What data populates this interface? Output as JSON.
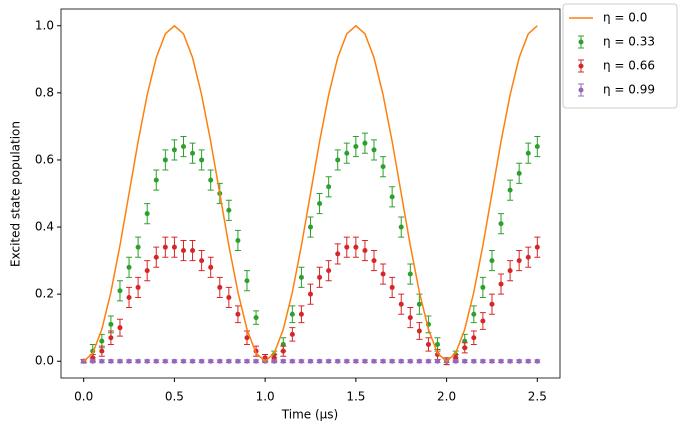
{
  "chart_data": {
    "type": "errorbar",
    "x_label": "Time (μs)",
    "y_label": "Excited state population",
    "x": [
      0,
      0.05,
      0.1,
      0.15,
      0.2,
      0.25,
      0.3,
      0.35,
      0.4,
      0.45,
      0.5,
      0.55,
      0.6,
      0.65,
      0.7,
      0.75,
      0.8,
      0.85,
      0.9,
      0.95,
      1.0,
      1.05,
      1.1,
      1.15,
      1.2,
      1.25,
      1.3,
      1.35,
      1.4,
      1.45,
      1.5,
      1.55,
      1.6,
      1.65,
      1.7,
      1.75,
      1.8,
      1.85,
      1.9,
      1.95,
      2.0,
      2.05,
      2.1,
      2.15,
      2.2,
      2.25,
      2.3,
      2.35,
      2.4,
      2.45,
      2.5
    ],
    "series": [
      {
        "name": "η = 0.0",
        "style": "line",
        "color": "#ff7f0e",
        "values": [
          0,
          0.024,
          0.095,
          0.206,
          0.345,
          0.5,
          0.655,
          0.794,
          0.905,
          0.976,
          1,
          0.976,
          0.905,
          0.794,
          0.655,
          0.5,
          0.345,
          0.206,
          0.095,
          0.024,
          0,
          0.024,
          0.095,
          0.206,
          0.345,
          0.5,
          0.655,
          0.794,
          0.905,
          0.976,
          1,
          0.976,
          0.905,
          0.794,
          0.655,
          0.5,
          0.345,
          0.206,
          0.095,
          0.024,
          0,
          0.024,
          0.095,
          0.206,
          0.345,
          0.5,
          0.655,
          0.794,
          0.905,
          0.976,
          1
        ]
      },
      {
        "name": "η = 0.33",
        "style": "errorbar",
        "color": "#2ca02c",
        "values": [
          0,
          0.03,
          0.06,
          0.11,
          0.21,
          0.28,
          0.34,
          0.44,
          0.54,
          0.6,
          0.63,
          0.64,
          0.62,
          0.6,
          0.54,
          0.5,
          0.45,
          0.36,
          0.24,
          0.13,
          0.01,
          0.02,
          0.05,
          0.14,
          0.25,
          0.4,
          0.47,
          0.52,
          0.6,
          0.62,
          0.64,
          0.65,
          0.63,
          0.58,
          0.49,
          0.4,
          0.26,
          0.17,
          0.11,
          0.05,
          0.0,
          0.02,
          0.06,
          0.14,
          0.22,
          0.3,
          0.41,
          0.51,
          0.56,
          0.62,
          0.64
        ],
        "errors": [
          0.005,
          0.02,
          0.02,
          0.025,
          0.03,
          0.03,
          0.03,
          0.03,
          0.03,
          0.03,
          0.03,
          0.03,
          0.03,
          0.03,
          0.03,
          0.03,
          0.03,
          0.03,
          0.03,
          0.02,
          0.01,
          0.01,
          0.02,
          0.025,
          0.03,
          0.03,
          0.03,
          0.03,
          0.03,
          0.03,
          0.03,
          0.03,
          0.03,
          0.03,
          0.03,
          0.03,
          0.03,
          0.03,
          0.025,
          0.02,
          0.01,
          0.01,
          0.02,
          0.025,
          0.03,
          0.03,
          0.03,
          0.03,
          0.03,
          0.03,
          0.03
        ]
      },
      {
        "name": "η = 0.66",
        "style": "errorbar",
        "color": "#d62728",
        "values": [
          0,
          0.01,
          0.03,
          0.07,
          0.1,
          0.19,
          0.22,
          0.27,
          0.31,
          0.34,
          0.34,
          0.33,
          0.33,
          0.3,
          0.28,
          0.22,
          0.19,
          0.14,
          0.07,
          0.03,
          0.01,
          0.01,
          0.03,
          0.08,
          0.14,
          0.2,
          0.25,
          0.27,
          0.32,
          0.34,
          0.34,
          0.33,
          0.3,
          0.26,
          0.22,
          0.17,
          0.13,
          0.09,
          0.05,
          0.02,
          0.0,
          0.01,
          0.04,
          0.07,
          0.12,
          0.17,
          0.23,
          0.27,
          0.3,
          0.31,
          0.34
        ],
        "errors": [
          0.005,
          0.01,
          0.015,
          0.02,
          0.025,
          0.03,
          0.03,
          0.03,
          0.03,
          0.03,
          0.03,
          0.03,
          0.03,
          0.03,
          0.03,
          0.03,
          0.03,
          0.025,
          0.02,
          0.015,
          0.01,
          0.01,
          0.015,
          0.02,
          0.025,
          0.03,
          0.03,
          0.03,
          0.03,
          0.03,
          0.03,
          0.03,
          0.03,
          0.03,
          0.03,
          0.03,
          0.03,
          0.025,
          0.02,
          0.015,
          0.01,
          0.01,
          0.015,
          0.02,
          0.025,
          0.03,
          0.03,
          0.03,
          0.03,
          0.03,
          0.03
        ]
      },
      {
        "name": "η = 0.99",
        "style": "errorbar",
        "color": "#9467bd",
        "values": [
          0,
          0,
          0,
          0,
          0,
          0,
          0,
          0,
          0,
          0,
          0,
          0,
          0,
          0,
          0,
          0,
          0,
          0,
          0,
          0,
          0,
          0,
          0,
          0,
          0,
          0,
          0,
          0,
          0,
          0,
          0,
          0,
          0,
          0,
          0,
          0,
          0,
          0,
          0,
          0,
          0,
          0,
          0,
          0,
          0,
          0,
          0,
          0,
          0,
          0,
          0
        ],
        "errors": [
          0.004,
          0.004,
          0.004,
          0.004,
          0.004,
          0.004,
          0.004,
          0.004,
          0.004,
          0.004,
          0.004,
          0.004,
          0.004,
          0.004,
          0.004,
          0.004,
          0.004,
          0.004,
          0.004,
          0.004,
          0.004,
          0.004,
          0.004,
          0.004,
          0.004,
          0.004,
          0.004,
          0.004,
          0.004,
          0.004,
          0.004,
          0.004,
          0.004,
          0.004,
          0.004,
          0.004,
          0.004,
          0.004,
          0.004,
          0.004,
          0.004,
          0.004,
          0.004,
          0.004,
          0.004,
          0.004,
          0.004,
          0.004,
          0.004,
          0.004,
          0.004
        ]
      }
    ],
    "xlim": [
      -0.125,
      2.625
    ],
    "xticks": [
      {
        "value": 0,
        "label": "0.0"
      },
      {
        "value": 0.5,
        "label": "0.5"
      },
      {
        "value": 1,
        "label": "1.0"
      },
      {
        "value": 1.5,
        "label": "1.5"
      },
      {
        "value": 2,
        "label": "2.0"
      },
      {
        "value": 2.5,
        "label": "2.5"
      }
    ],
    "ylim": [
      -0.05,
      1.05
    ],
    "yticks": [
      {
        "value": 0,
        "label": "0.0"
      },
      {
        "value": 0.2,
        "label": "0.2"
      },
      {
        "value": 0.4,
        "label": "0.4"
      },
      {
        "value": 0.6,
        "label": "0.6"
      },
      {
        "value": 0.8,
        "label": "0.8"
      },
      {
        "value": 1,
        "label": "1.0"
      }
    ],
    "grid": false,
    "legend": "outside-upper-right"
  }
}
